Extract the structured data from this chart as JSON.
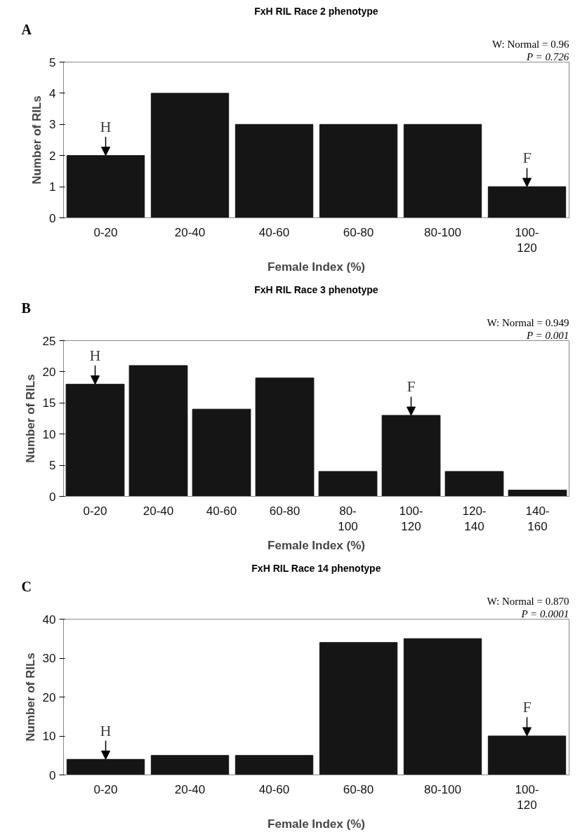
{
  "chart_data": [
    {
      "type": "bar",
      "title": "FxH RIL Race 2 phenotype",
      "xlabel": "Female Index (%)",
      "ylabel": "Number of RILs",
      "categories": [
        "0-20",
        "20-40",
        "40-60",
        "60-80",
        "80-100",
        "100-120"
      ],
      "values": [
        2,
        4,
        3,
        3,
        3,
        1
      ],
      "color": "#151515",
      "ylim": [
        0,
        5
      ],
      "yticks": [
        0,
        1,
        2,
        3,
        4,
        5
      ],
      "grid": false,
      "annotations": [
        "A",
        "W: Normal = 0.96",
        "P = 0.726",
        {
          "text": "H",
          "x": "0-20",
          "y": 2
        },
        {
          "text": "F",
          "x": "100-120",
          "y": 1
        }
      ]
    },
    {
      "type": "bar",
      "title": "FxH RIL Race 3 phenotype",
      "xlabel": "Female Index (%)",
      "ylabel": "Number of RILs",
      "categories": [
        "0-20",
        "20-40",
        "40-60",
        "60-80",
        "80-100",
        "100-120",
        "120-140",
        "140-160"
      ],
      "values": [
        18,
        21,
        14,
        19,
        4,
        13,
        4,
        1
      ],
      "color": "#151515",
      "ylim": [
        0,
        25
      ],
      "yticks": [
        0,
        5,
        10,
        15,
        20,
        25
      ],
      "grid": false,
      "annotations": [
        "B",
        "W: Normal = 0.949",
        "P = 0.001",
        {
          "text": "H",
          "x": "0-20",
          "y": 18
        },
        {
          "text": "F",
          "x": "100-120",
          "y": 13
        }
      ]
    },
    {
      "type": "bar",
      "title": "FxH RIL Race 14 phenotype",
      "xlabel": "Female Index (%)",
      "ylabel": "Number of RILs",
      "categories": [
        "0-20",
        "20-40",
        "40-60",
        "60-80",
        "80-100",
        "100-120"
      ],
      "values": [
        4,
        5,
        5,
        34,
        35,
        10
      ],
      "color": "#151515",
      "ylim": [
        0,
        40
      ],
      "yticks": [
        0,
        10,
        20,
        30,
        40
      ],
      "grid": false,
      "annotations": [
        "C",
        "W: Normal = 0.870",
        "P = 0.0001",
        {
          "text": "H",
          "x": "0-20",
          "y": 4
        },
        {
          "text": "F",
          "x": "100-120",
          "y": 10
        }
      ]
    }
  ]
}
